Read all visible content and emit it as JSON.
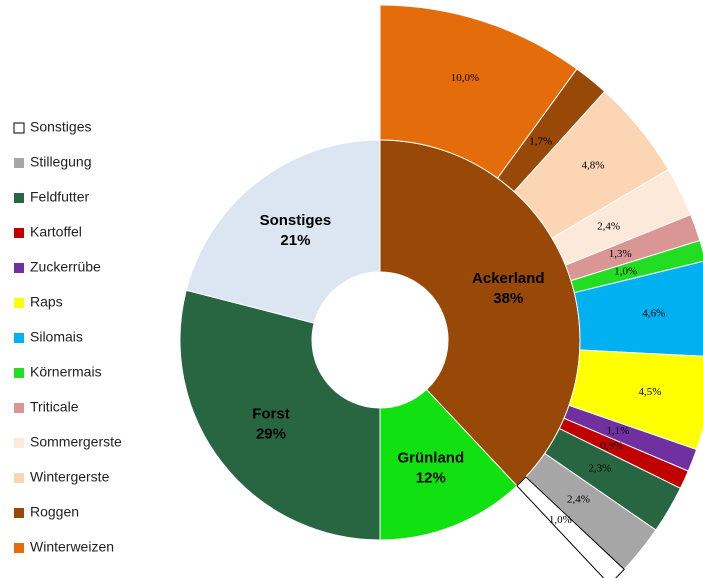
{
  "chart_data": {
    "type": "pie",
    "rings": [
      {
        "categories": [
          "Ackerland",
          "Grünland",
          "Forst",
          "Sonstiges"
        ],
        "values": [
          38,
          12,
          29,
          21
        ],
        "value_labels": [
          "38%",
          "12%",
          "29%",
          "21%"
        ],
        "colors": [
          "#984807",
          "#11e011",
          "#276640",
          "#dce6f2"
        ]
      },
      {
        "categories": [
          "Winterweizen",
          "Roggen",
          "Wintergerste",
          "Sommergerste",
          "Triticale",
          "Körnermais",
          "Silomais",
          "Raps",
          "Zuckerrübe",
          "Kartoffel",
          "Feldfutter",
          "Stillegung",
          "Sonstiges"
        ],
        "values": [
          10.0,
          1.7,
          4.8,
          2.4,
          1.3,
          1.0,
          4.6,
          4.5,
          1.1,
          0.9,
          2.3,
          2.4,
          1.0
        ],
        "value_labels": [
          "10,0%",
          "1,7%",
          "4,8%",
          "2,4%",
          "1,3%",
          "1,0%",
          "4,6%",
          "4,5%",
          "1,1%",
          "0,9%",
          "2,3%",
          "2,4%",
          "1,0%"
        ],
        "colors": [
          "#e46c0a",
          "#984807",
          "#fcd5b5",
          "#fde9d9",
          "#d99694",
          "#22dd22",
          "#00b0f0",
          "#ffff00",
          "#7030a0",
          "#c00000",
          "#276640",
          "#a6a6a6",
          "#ffffff"
        ]
      }
    ]
  }
}
